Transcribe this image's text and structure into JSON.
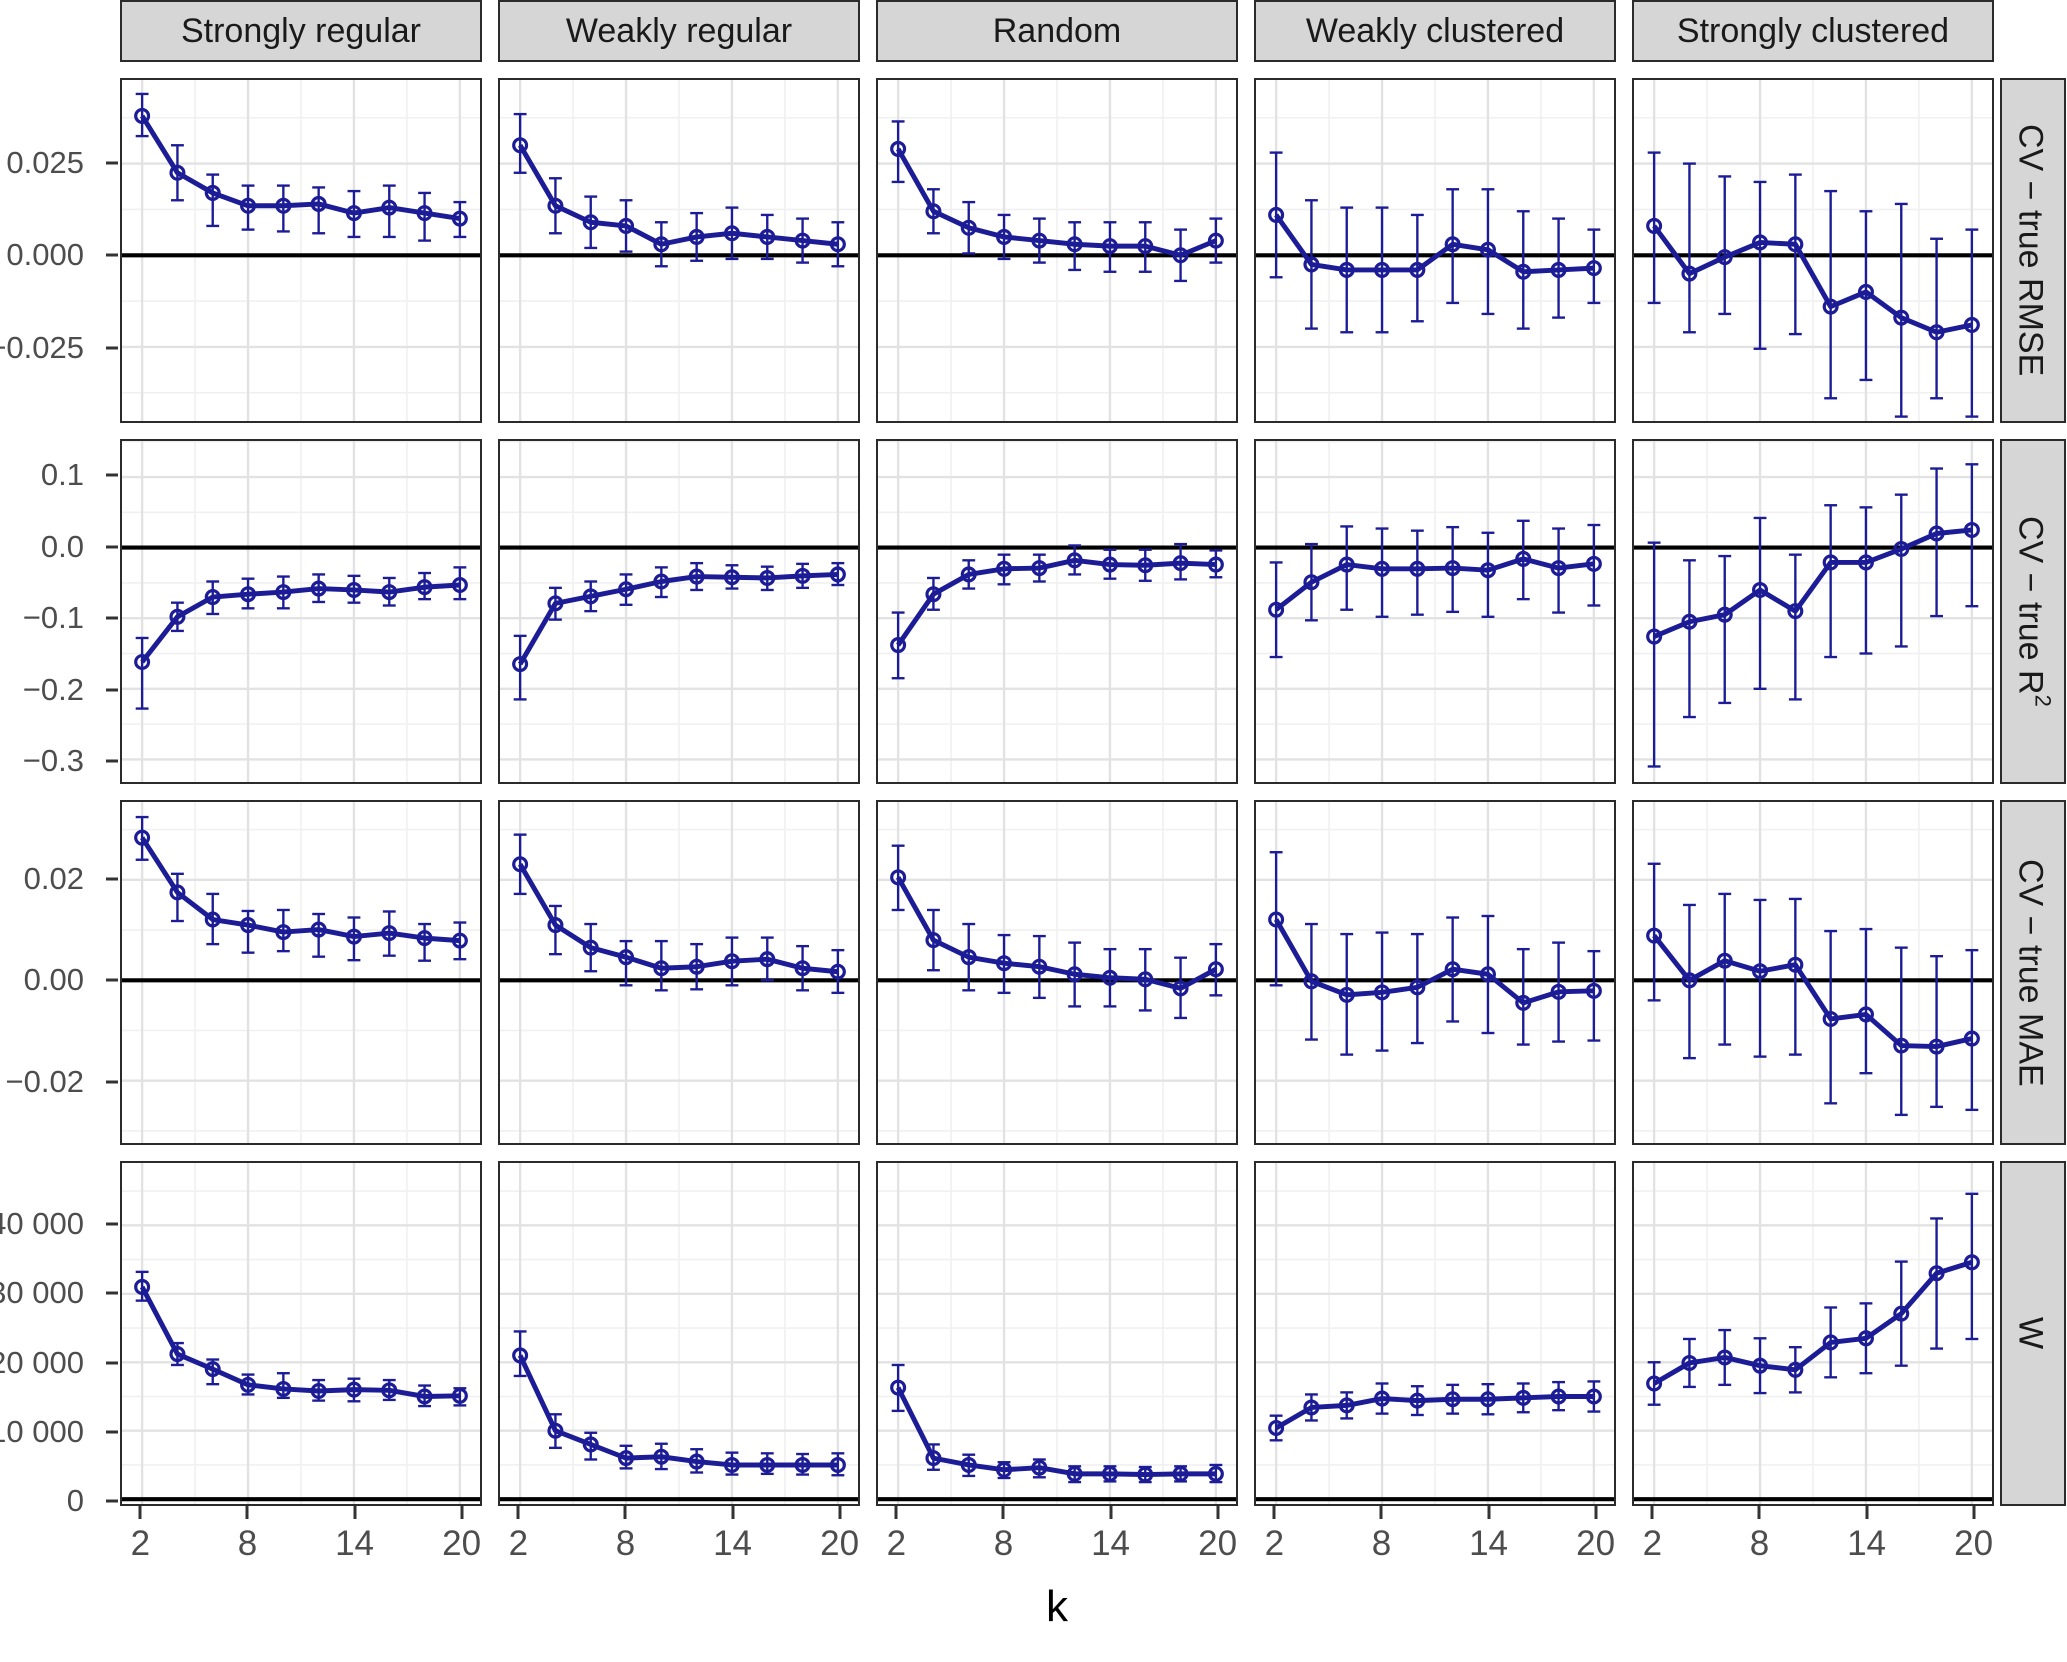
{
  "x_axis": {
    "label": "k",
    "ticks": [
      2,
      8,
      14,
      20
    ],
    "minor": [
      5,
      11,
      17
    ],
    "domain": [
      0.86,
      21.14
    ]
  },
  "columns": [
    "Strongly regular",
    "Weakly regular",
    "Random",
    "Weakly clustered",
    "Strongly clustered"
  ],
  "rows": [
    {
      "label": "CV − true RMSE",
      "label_sup": "",
      "domain": [
        -0.0452,
        0.0478
      ],
      "ticks": [
        {
          "v": 0.025,
          "t": "0.025"
        },
        {
          "v": 0.0,
          "t": "0.000"
        },
        {
          "v": -0.025,
          "t": "−0.025"
        }
      ],
      "minor": [
        0.0375,
        0.0125,
        -0.0125,
        -0.0375
      ]
    },
    {
      "label": "CV − true R",
      "label_sup": "2",
      "domain": [
        -0.332,
        0.151
      ],
      "ticks": [
        {
          "v": 0.1,
          "t": "0.1"
        },
        {
          "v": 0.0,
          "t": "0.0"
        },
        {
          "v": -0.1,
          "t": "−0.1"
        },
        {
          "v": -0.2,
          "t": "−0.2"
        },
        {
          "v": -0.3,
          "t": "−0.3"
        }
      ],
      "minor": [
        0.15,
        0.05,
        -0.05,
        -0.15,
        -0.25
      ]
    },
    {
      "label": "CV − true MAE",
      "label_sup": "",
      "domain": [
        -0.0324,
        0.0355
      ],
      "ticks": [
        {
          "v": 0.02,
          "t": "0.02"
        },
        {
          "v": 0.0,
          "t": "0.00"
        },
        {
          "v": -0.02,
          "t": "−0.02"
        }
      ],
      "minor": [
        0.03,
        0.01,
        -0.01,
        -0.03
      ]
    },
    {
      "label": "W",
      "label_sup": "",
      "domain": [
        -700,
        49100
      ],
      "ticks": [
        {
          "v": 40000,
          "t": "40 000"
        },
        {
          "v": 30000,
          "t": "30 000"
        },
        {
          "v": 20000,
          "t": "20 000"
        },
        {
          "v": 10000,
          "t": "10 000"
        },
        {
          "v": 0,
          "t": "0"
        }
      ],
      "minor": [
        45000,
        35000,
        25000,
        15000,
        5000
      ]
    }
  ],
  "style": {
    "line_color": "#1c1c96",
    "grid_major": "#e2e2e2",
    "grid_minor": "#f0f0f0",
    "zero_line": "#000000",
    "strip_bg": "#d6d6d6",
    "panel_border": "#2b2b2b"
  },
  "chart_data": {
    "type": "line",
    "x": [
      2,
      4,
      6,
      8,
      10,
      12,
      14,
      16,
      18,
      20
    ],
    "x_domain": [
      0.86,
      21.14
    ],
    "facet_rows": [
      "CV − true RMSE",
      "CV − true R2",
      "CV − true MAE",
      "W"
    ],
    "facet_cols": [
      "Strongly regular",
      "Weakly regular",
      "Random",
      "Weakly clustered",
      "Strongly clustered"
    ],
    "series": [
      [
        {
          "y": [
            0.038,
            0.0225,
            0.017,
            0.0135,
            0.0135,
            0.014,
            0.0115,
            0.013,
            0.0115,
            0.01
          ],
          "lo": [
            0.0325,
            0.015,
            0.008,
            0.007,
            0.0065,
            0.006,
            0.005,
            0.005,
            0.004,
            0.005
          ],
          "hi": [
            0.044,
            0.03,
            0.022,
            0.019,
            0.019,
            0.0185,
            0.0175,
            0.019,
            0.017,
            0.0145
          ]
        },
        {
          "y": [
            0.03,
            0.0135,
            0.009,
            0.008,
            0.003,
            0.005,
            0.006,
            0.005,
            0.004,
            0.003
          ],
          "lo": [
            0.0225,
            0.006,
            0.002,
            0.001,
            -0.003,
            -0.0015,
            -0.001,
            -0.001,
            -0.002,
            -0.003
          ],
          "hi": [
            0.0385,
            0.021,
            0.016,
            0.015,
            0.009,
            0.0115,
            0.013,
            0.011,
            0.01,
            0.009
          ]
        },
        {
          "y": [
            0.029,
            0.012,
            0.0075,
            0.005,
            0.004,
            0.003,
            0.0025,
            0.0025,
            0.0,
            0.004
          ],
          "lo": [
            0.02,
            0.006,
            0.0005,
            -0.001,
            -0.002,
            -0.004,
            -0.0045,
            -0.0045,
            -0.007,
            -0.002
          ],
          "hi": [
            0.0365,
            0.018,
            0.0145,
            0.011,
            0.01,
            0.009,
            0.009,
            0.009,
            0.007,
            0.01
          ]
        },
        {
          "y": [
            0.011,
            -0.0025,
            -0.004,
            -0.004,
            -0.004,
            0.003,
            0.0015,
            -0.0045,
            -0.004,
            -0.0035
          ],
          "lo": [
            -0.006,
            -0.02,
            -0.021,
            -0.021,
            -0.018,
            -0.013,
            -0.016,
            -0.02,
            -0.017,
            -0.013
          ],
          "hi": [
            0.028,
            0.015,
            0.013,
            0.013,
            0.011,
            0.018,
            0.018,
            0.012,
            0.01,
            0.007
          ]
        },
        {
          "y": [
            0.008,
            -0.005,
            -0.0005,
            0.0035,
            0.003,
            -0.014,
            -0.01,
            -0.017,
            -0.021,
            -0.019
          ],
          "lo": [
            -0.013,
            -0.021,
            -0.016,
            -0.0255,
            -0.0215,
            -0.039,
            -0.034,
            -0.044,
            -0.039,
            -0.044
          ],
          "hi": [
            0.028,
            0.025,
            0.0215,
            0.02,
            0.022,
            0.0175,
            0.012,
            0.014,
            0.0045,
            0.007
          ]
        }
      ],
      [
        {
          "y": [
            -0.162,
            -0.098,
            -0.07,
            -0.066,
            -0.063,
            -0.058,
            -0.06,
            -0.063,
            -0.056,
            -0.053
          ],
          "lo": [
            -0.228,
            -0.118,
            -0.094,
            -0.086,
            -0.086,
            -0.077,
            -0.078,
            -0.082,
            -0.073,
            -0.073
          ],
          "hi": [
            -0.128,
            -0.078,
            -0.048,
            -0.044,
            -0.041,
            -0.038,
            -0.04,
            -0.043,
            -0.036,
            -0.028
          ]
        },
        {
          "y": [
            -0.165,
            -0.079,
            -0.069,
            -0.059,
            -0.048,
            -0.041,
            -0.042,
            -0.043,
            -0.04,
            -0.038
          ],
          "lo": [
            -0.215,
            -0.102,
            -0.09,
            -0.081,
            -0.07,
            -0.06,
            -0.058,
            -0.06,
            -0.057,
            -0.053
          ],
          "hi": [
            -0.125,
            -0.057,
            -0.048,
            -0.038,
            -0.028,
            -0.022,
            -0.025,
            -0.027,
            -0.023,
            -0.022
          ]
        },
        {
          "y": [
            -0.138,
            -0.066,
            -0.038,
            -0.03,
            -0.029,
            -0.018,
            -0.024,
            -0.025,
            -0.022,
            -0.024
          ],
          "lo": [
            -0.185,
            -0.088,
            -0.058,
            -0.052,
            -0.048,
            -0.038,
            -0.044,
            -0.047,
            -0.045,
            -0.042
          ],
          "hi": [
            -0.092,
            -0.043,
            -0.018,
            -0.01,
            -0.01,
            0.003,
            -0.003,
            -0.003,
            0.005,
            -0.004
          ]
        },
        {
          "y": [
            -0.088,
            -0.049,
            -0.024,
            -0.03,
            -0.03,
            -0.029,
            -0.032,
            -0.016,
            -0.029,
            -0.023
          ],
          "lo": [
            -0.155,
            -0.103,
            -0.088,
            -0.098,
            -0.095,
            -0.091,
            -0.098,
            -0.073,
            -0.092,
            -0.082
          ],
          "hi": [
            -0.021,
            0.005,
            0.03,
            0.027,
            0.024,
            0.029,
            0.021,
            0.038,
            0.027,
            0.032
          ]
        },
        {
          "y": [
            -0.126,
            -0.105,
            -0.095,
            -0.06,
            -0.09,
            -0.021,
            -0.021,
            -0.002,
            0.02,
            0.025
          ],
          "lo": [
            -0.31,
            -0.24,
            -0.22,
            -0.2,
            -0.215,
            -0.155,
            -0.15,
            -0.14,
            -0.097,
            -0.083
          ],
          "hi": [
            0.007,
            -0.018,
            -0.012,
            0.042,
            -0.01,
            0.06,
            0.057,
            0.075,
            0.112,
            0.118
          ]
        }
      ],
      [
        {
          "y": [
            0.0284,
            0.0175,
            0.0121,
            0.011,
            0.0096,
            0.0101,
            0.0087,
            0.0094,
            0.0084,
            0.0079
          ],
          "lo": [
            0.024,
            0.0118,
            0.0072,
            0.0055,
            0.0058,
            0.0047,
            0.004,
            0.0049,
            0.0039,
            0.0042
          ],
          "hi": [
            0.0325,
            0.0212,
            0.0172,
            0.0138,
            0.014,
            0.0132,
            0.0125,
            0.0137,
            0.0112,
            0.0115
          ]
        },
        {
          "y": [
            0.0231,
            0.011,
            0.0065,
            0.0046,
            0.0024,
            0.0027,
            0.0038,
            0.0042,
            0.0024,
            0.0017
          ],
          "lo": [
            0.0172,
            0.0052,
            0.0018,
            -0.001,
            -0.002,
            -0.0018,
            -0.001,
            0.0,
            -0.002,
            -0.0025
          ],
          "hi": [
            0.029,
            0.0148,
            0.0112,
            0.0078,
            0.0078,
            0.0072,
            0.0085,
            0.0085,
            0.0068,
            0.006
          ]
        },
        {
          "y": [
            0.0205,
            0.008,
            0.0046,
            0.0034,
            0.0027,
            0.0012,
            0.0005,
            0.0002,
            -0.0016,
            0.0022
          ],
          "lo": [
            0.014,
            0.002,
            -0.002,
            -0.0025,
            -0.0035,
            -0.0052,
            -0.0052,
            -0.006,
            -0.0075,
            -0.003
          ],
          "hi": [
            0.0268,
            0.014,
            0.0112,
            0.009,
            0.0088,
            0.0075,
            0.0062,
            0.0062,
            0.0045,
            0.0072
          ]
        },
        {
          "y": [
            0.0121,
            -0.0002,
            -0.0029,
            -0.0024,
            -0.0014,
            0.0022,
            0.0012,
            -0.0045,
            -0.0023,
            -0.0021
          ],
          "lo": [
            -0.001,
            -0.0118,
            -0.0148,
            -0.014,
            -0.0125,
            -0.0082,
            -0.0105,
            -0.0128,
            -0.0122,
            -0.012
          ],
          "hi": [
            0.0255,
            0.0112,
            0.0092,
            0.0095,
            0.0092,
            0.0125,
            0.0128,
            0.0062,
            0.0075,
            0.0058
          ]
        },
        {
          "y": [
            0.0089,
            0.0,
            0.0039,
            0.0018,
            0.0031,
            -0.0077,
            -0.0068,
            -0.013,
            -0.0132,
            -0.0116
          ],
          "lo": [
            -0.004,
            -0.0155,
            -0.0128,
            -0.0152,
            -0.0148,
            -0.0245,
            -0.0185,
            -0.0268,
            -0.0252,
            -0.0258
          ],
          "hi": [
            0.0232,
            0.015,
            0.0172,
            0.016,
            0.0162,
            0.0098,
            0.0102,
            0.0065,
            0.0048,
            0.006
          ]
        }
      ],
      [
        {
          "y": [
            31000,
            21200,
            19000,
            16700,
            16100,
            15800,
            16000,
            15900,
            15000,
            15100
          ],
          "lo": [
            29000,
            19600,
            16800,
            15300,
            14800,
            14400,
            14300,
            14500,
            13600,
            13700
          ],
          "hi": [
            33200,
            22800,
            20400,
            18200,
            18400,
            17400,
            17600,
            17400,
            16600,
            16200
          ]
        },
        {
          "y": [
            21000,
            10000,
            8000,
            6000,
            6200,
            5500,
            5000,
            5000,
            5000,
            5000
          ],
          "lo": [
            18000,
            7500,
            5800,
            4500,
            4400,
            3900,
            3600,
            3700,
            3600,
            3500
          ],
          "hi": [
            24500,
            12400,
            9700,
            7800,
            8100,
            7300,
            6800,
            6700,
            6600,
            6700
          ]
        },
        {
          "y": [
            16300,
            6000,
            5000,
            4300,
            4600,
            3700,
            3700,
            3600,
            3700,
            3700
          ],
          "lo": [
            12900,
            4300,
            3400,
            3100,
            3200,
            2500,
            2600,
            2500,
            2600,
            2500
          ],
          "hi": [
            19600,
            8000,
            6500,
            5400,
            5800,
            4800,
            4800,
            4700,
            4800,
            5000
          ]
        },
        {
          "y": [
            10400,
            13400,
            13700,
            14700,
            14400,
            14600,
            14600,
            14800,
            15000,
            15000
          ],
          "lo": [
            8600,
            11500,
            11800,
            12500,
            12300,
            12500,
            12400,
            12700,
            13000,
            12800
          ],
          "hi": [
            12200,
            15300,
            15600,
            16900,
            16500,
            16700,
            16800,
            16900,
            17100,
            17200
          ]
        },
        {
          "y": [
            16900,
            19900,
            20700,
            19500,
            18900,
            22900,
            23500,
            27100,
            33000,
            34600
          ],
          "lo": [
            13800,
            16400,
            16700,
            15500,
            15600,
            17800,
            18400,
            19500,
            22000,
            23400
          ],
          "hi": [
            20000,
            23400,
            24700,
            23500,
            22200,
            28000,
            28600,
            34700,
            41000,
            44600
          ]
        }
      ]
    ]
  }
}
